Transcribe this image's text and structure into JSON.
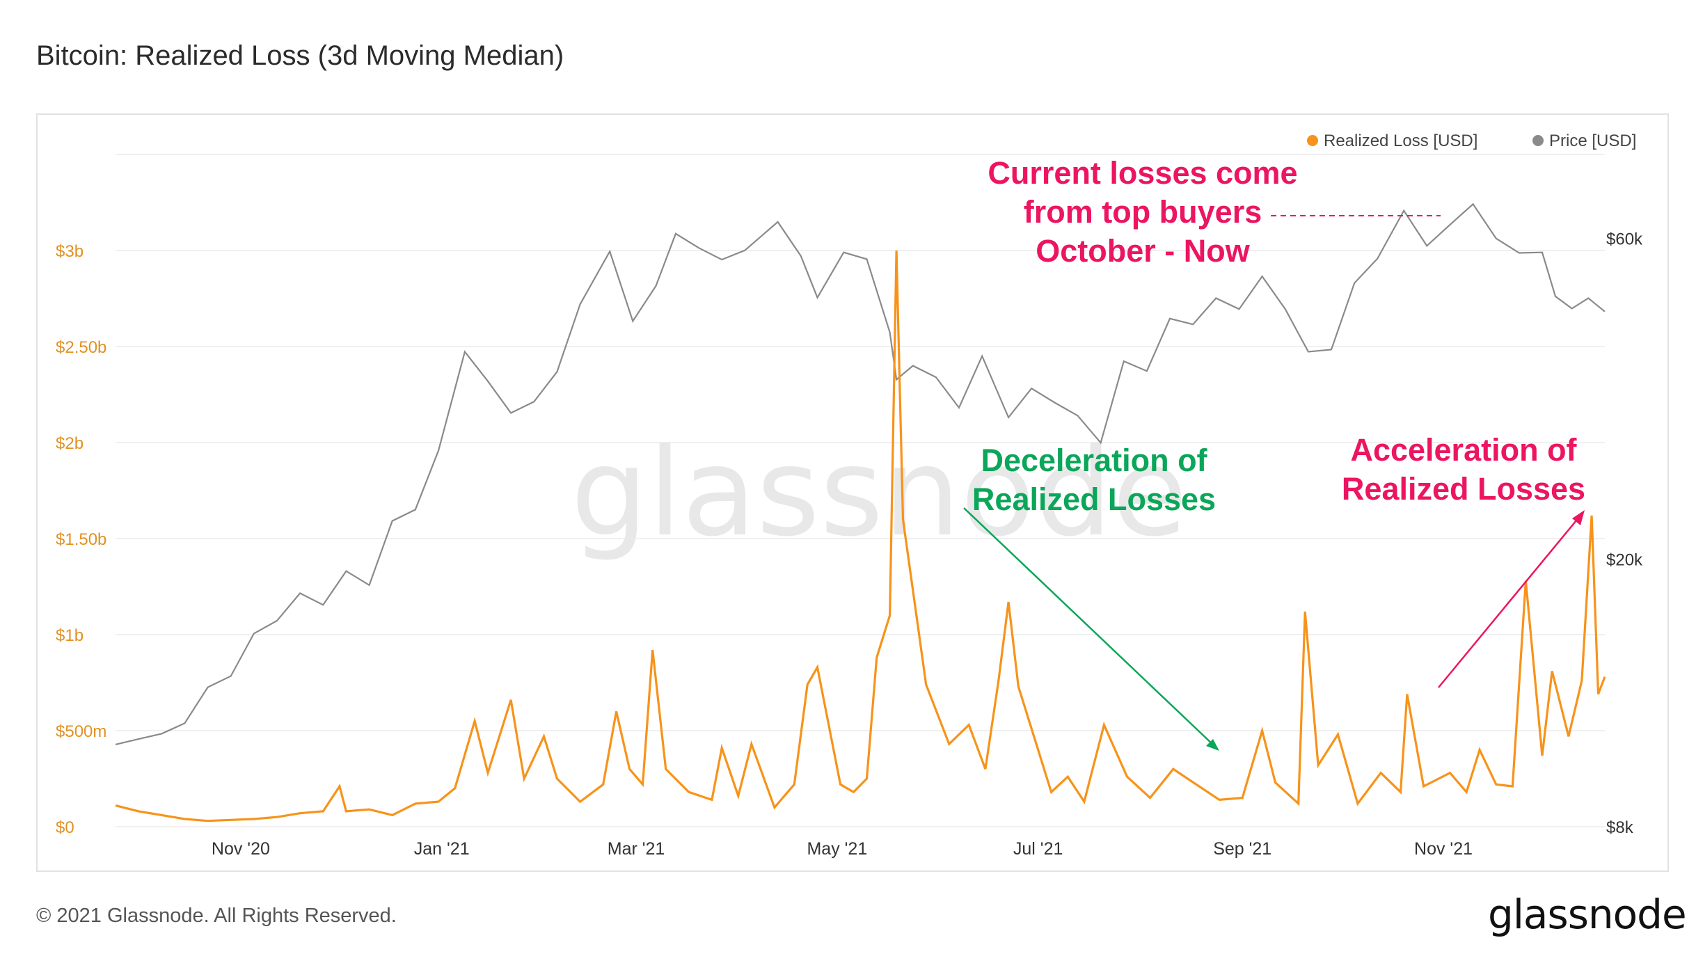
{
  "title": "Bitcoin: Realized Loss (3d Moving Median)",
  "footer": "© 2021 Glassnode. All Rights Reserved.",
  "brand": "glassnode",
  "watermark": "glassnode",
  "colors": {
    "loss": "#f7931a",
    "price": "#8a8a8a",
    "red": "#ec1561",
    "green": "#0aa659"
  },
  "chart_data": {
    "type": "line",
    "title": "Bitcoin: Realized Loss (3d Moving Median)",
    "x_start": "2020-09-24",
    "x_end": "2021-12-20",
    "x_ticks": [
      {
        "label": "Nov '20",
        "date": "2020-11-01"
      },
      {
        "label": "Jan '21",
        "date": "2021-01-01"
      },
      {
        "label": "Mar '21",
        "date": "2021-03-01"
      },
      {
        "label": "May '21",
        "date": "2021-05-01"
      },
      {
        "label": "Jul '21",
        "date": "2021-07-01"
      },
      {
        "label": "Sep '21",
        "date": "2021-09-01"
      },
      {
        "label": "Nov '21",
        "date": "2021-11-01"
      }
    ],
    "y_left": {
      "label": "Realized Loss [USD]",
      "range": [
        0,
        3500000000
      ],
      "ticks": [
        {
          "label": "$0",
          "value": 0
        },
        {
          "label": "$500m",
          "value": 500000000
        },
        {
          "label": "$1b",
          "value": 1000000000
        },
        {
          "label": "$1.50b",
          "value": 1500000000
        },
        {
          "label": "$2b",
          "value": 2000000000
        },
        {
          "label": "$2.50b",
          "value": 2500000000
        },
        {
          "label": "$3b",
          "value": 3000000000
        }
      ]
    },
    "y_right": {
      "label": "Price [USD]",
      "scale": "log",
      "range": [
        8000,
        80000
      ],
      "ticks": [
        {
          "label": "$8k",
          "value": 8000
        },
        {
          "label": "$20k",
          "value": 20000
        },
        {
          "label": "$60k",
          "value": 60000
        }
      ]
    },
    "legend": [
      "Realized Loss [USD]",
      "Price [USD]"
    ],
    "legend_position": "top-right",
    "series": [
      {
        "name": "Price [USD]",
        "axis": "right",
        "points": [
          [
            "2020-09-24",
            10600
          ],
          [
            "2020-10-01",
            10800
          ],
          [
            "2020-10-08",
            11000
          ],
          [
            "2020-10-15",
            11400
          ],
          [
            "2020-10-22",
            12900
          ],
          [
            "2020-10-29",
            13400
          ],
          [
            "2020-11-05",
            15500
          ],
          [
            "2020-11-12",
            16200
          ],
          [
            "2020-11-19",
            17800
          ],
          [
            "2020-11-26",
            17100
          ],
          [
            "2020-12-03",
            19200
          ],
          [
            "2020-12-10",
            18300
          ],
          [
            "2020-12-17",
            22800
          ],
          [
            "2020-12-24",
            23700
          ],
          [
            "2020-12-31",
            29000
          ],
          [
            "2021-01-08",
            40700
          ],
          [
            "2021-01-15",
            36800
          ],
          [
            "2021-01-22",
            33000
          ],
          [
            "2021-01-29",
            34300
          ],
          [
            "2021-02-05",
            38000
          ],
          [
            "2021-02-12",
            47900
          ],
          [
            "2021-02-21",
            57400
          ],
          [
            "2021-02-28",
            45200
          ],
          [
            "2021-03-07",
            51000
          ],
          [
            "2021-03-13",
            61000
          ],
          [
            "2021-03-20",
            58100
          ],
          [
            "2021-03-27",
            55800
          ],
          [
            "2021-04-03",
            57600
          ],
          [
            "2021-04-13",
            63500
          ],
          [
            "2021-04-20",
            56500
          ],
          [
            "2021-04-25",
            49000
          ],
          [
            "2021-05-03",
            57200
          ],
          [
            "2021-05-10",
            55900
          ],
          [
            "2021-05-17",
            43500
          ],
          [
            "2021-05-19",
            37000
          ],
          [
            "2021-05-24",
            38800
          ],
          [
            "2021-05-31",
            37300
          ],
          [
            "2021-06-07",
            33600
          ],
          [
            "2021-06-14",
            40100
          ],
          [
            "2021-06-22",
            32500
          ],
          [
            "2021-06-29",
            35900
          ],
          [
            "2021-07-06",
            34200
          ],
          [
            "2021-07-13",
            32700
          ],
          [
            "2021-07-20",
            29800
          ],
          [
            "2021-07-27",
            39400
          ],
          [
            "2021-08-03",
            38100
          ],
          [
            "2021-08-10",
            45600
          ],
          [
            "2021-08-17",
            44700
          ],
          [
            "2021-08-24",
            48900
          ],
          [
            "2021-08-31",
            47100
          ],
          [
            "2021-09-07",
            52700
          ],
          [
            "2021-09-14",
            47100
          ],
          [
            "2021-09-21",
            40700
          ],
          [
            "2021-09-28",
            41000
          ],
          [
            "2021-10-05",
            51500
          ],
          [
            "2021-10-12",
            56000
          ],
          [
            "2021-10-20",
            66000
          ],
          [
            "2021-10-27",
            58500
          ],
          [
            "2021-11-03",
            62900
          ],
          [
            "2021-11-10",
            67500
          ],
          [
            "2021-11-17",
            60000
          ],
          [
            "2021-11-24",
            57100
          ],
          [
            "2021-12-01",
            57200
          ],
          [
            "2021-12-05",
            49200
          ],
          [
            "2021-12-10",
            47200
          ],
          [
            "2021-12-15",
            48900
          ],
          [
            "2021-12-20",
            46700
          ]
        ]
      },
      {
        "name": "Realized Loss [USD]",
        "axis": "left",
        "points": [
          [
            "2020-09-24",
            110000000
          ],
          [
            "2020-10-01",
            80000000
          ],
          [
            "2020-10-08",
            60000000
          ],
          [
            "2020-10-15",
            40000000
          ],
          [
            "2020-10-22",
            30000000
          ],
          [
            "2020-10-29",
            35000000
          ],
          [
            "2020-11-05",
            40000000
          ],
          [
            "2020-11-12",
            50000000
          ],
          [
            "2020-11-19",
            70000000
          ],
          [
            "2020-11-26",
            80000000
          ],
          [
            "2020-12-01",
            210000000
          ],
          [
            "2020-12-03",
            80000000
          ],
          [
            "2020-12-10",
            90000000
          ],
          [
            "2020-12-17",
            60000000
          ],
          [
            "2020-12-24",
            120000000
          ],
          [
            "2020-12-31",
            130000000
          ],
          [
            "2021-01-05",
            200000000
          ],
          [
            "2021-01-11",
            550000000
          ],
          [
            "2021-01-15",
            280000000
          ],
          [
            "2021-01-22",
            660000000
          ],
          [
            "2021-01-26",
            250000000
          ],
          [
            "2021-02-01",
            470000000
          ],
          [
            "2021-02-05",
            250000000
          ],
          [
            "2021-02-12",
            130000000
          ],
          [
            "2021-02-19",
            220000000
          ],
          [
            "2021-02-23",
            600000000
          ],
          [
            "2021-02-27",
            300000000
          ],
          [
            "2021-03-03",
            220000000
          ],
          [
            "2021-03-06",
            920000000
          ],
          [
            "2021-03-10",
            300000000
          ],
          [
            "2021-03-17",
            180000000
          ],
          [
            "2021-03-24",
            140000000
          ],
          [
            "2021-03-27",
            410000000
          ],
          [
            "2021-04-01",
            160000000
          ],
          [
            "2021-04-05",
            430000000
          ],
          [
            "2021-04-12",
            100000000
          ],
          [
            "2021-04-18",
            220000000
          ],
          [
            "2021-04-22",
            740000000
          ],
          [
            "2021-04-25",
            830000000
          ],
          [
            "2021-05-02",
            220000000
          ],
          [
            "2021-05-06",
            180000000
          ],
          [
            "2021-05-10",
            250000000
          ],
          [
            "2021-05-13",
            880000000
          ],
          [
            "2021-05-17",
            1100000000
          ],
          [
            "2021-05-19",
            3000000000
          ],
          [
            "2021-05-21",
            1600000000
          ],
          [
            "2021-05-24",
            1230000000
          ],
          [
            "2021-05-28",
            740000000
          ],
          [
            "2021-06-04",
            430000000
          ],
          [
            "2021-06-10",
            530000000
          ],
          [
            "2021-06-15",
            300000000
          ],
          [
            "2021-06-19",
            760000000
          ],
          [
            "2021-06-22",
            1170000000
          ],
          [
            "2021-06-25",
            730000000
          ],
          [
            "2021-07-01",
            400000000
          ],
          [
            "2021-07-05",
            180000000
          ],
          [
            "2021-07-10",
            260000000
          ],
          [
            "2021-07-15",
            130000000
          ],
          [
            "2021-07-21",
            530000000
          ],
          [
            "2021-07-28",
            260000000
          ],
          [
            "2021-08-04",
            150000000
          ],
          [
            "2021-08-11",
            300000000
          ],
          [
            "2021-08-18",
            220000000
          ],
          [
            "2021-08-25",
            140000000
          ],
          [
            "2021-09-01",
            150000000
          ],
          [
            "2021-09-07",
            500000000
          ],
          [
            "2021-09-11",
            230000000
          ],
          [
            "2021-09-18",
            120000000
          ],
          [
            "2021-09-20",
            1120000000
          ],
          [
            "2021-09-24",
            320000000
          ],
          [
            "2021-09-30",
            480000000
          ],
          [
            "2021-10-06",
            120000000
          ],
          [
            "2021-10-13",
            280000000
          ],
          [
            "2021-10-19",
            180000000
          ],
          [
            "2021-10-21",
            690000000
          ],
          [
            "2021-10-26",
            210000000
          ],
          [
            "2021-11-03",
            280000000
          ],
          [
            "2021-11-08",
            180000000
          ],
          [
            "2021-11-12",
            400000000
          ],
          [
            "2021-11-17",
            220000000
          ],
          [
            "2021-11-22",
            210000000
          ],
          [
            "2021-11-26",
            1280000000
          ],
          [
            "2021-12-01",
            370000000
          ],
          [
            "2021-12-04",
            810000000
          ],
          [
            "2021-12-09",
            470000000
          ],
          [
            "2021-12-13",
            760000000
          ],
          [
            "2021-12-16",
            1620000000
          ],
          [
            "2021-12-18",
            690000000
          ],
          [
            "2021-12-20",
            780000000
          ]
        ]
      }
    ],
    "annotations": [
      {
        "lines": [
          "Current losses come",
          "from top buyers",
          "October - Now"
        ],
        "color": "red"
      },
      {
        "lines": [
          "Deceleration of",
          "Realized Losses"
        ],
        "color": "green"
      },
      {
        "lines": [
          "Acceleration of",
          "Realized Losses"
        ],
        "color": "red"
      }
    ]
  }
}
